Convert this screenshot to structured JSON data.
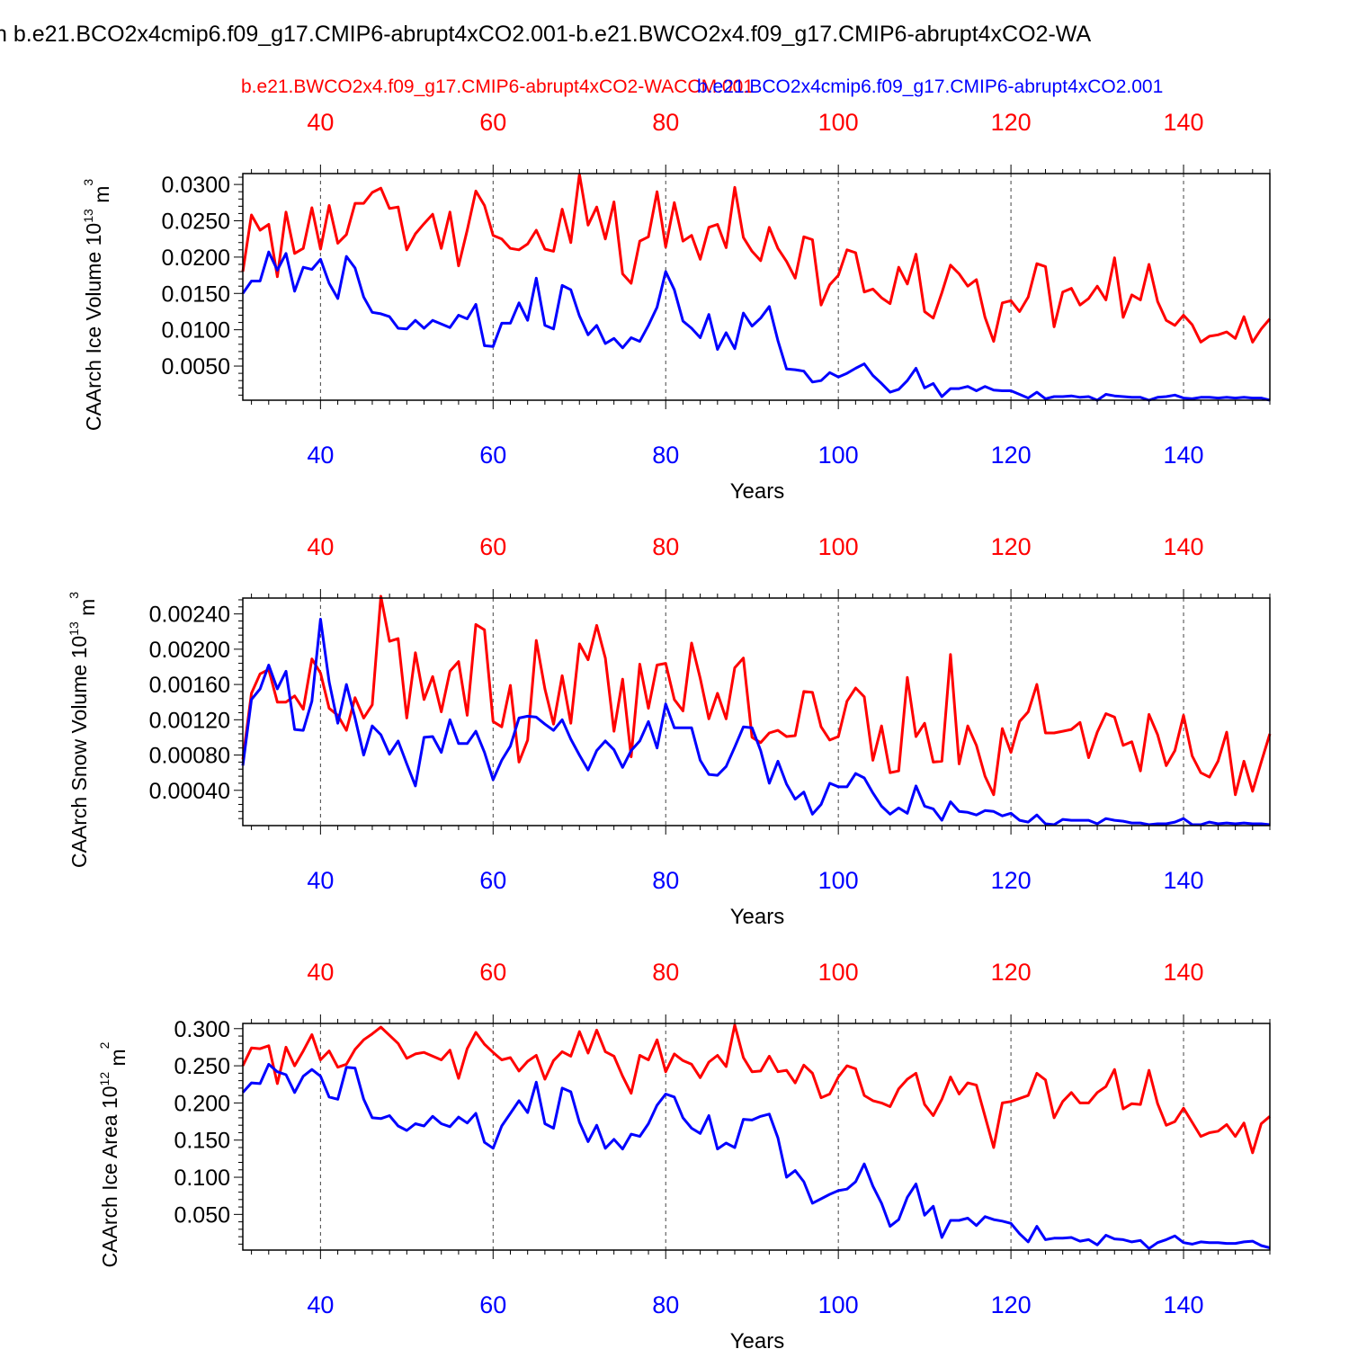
{
  "figure": {
    "main_title": "n b.e21.BCO2x4cmip6.f09_g17.CMIP6-abrupt4xCO2.001-b.e21.BWCO2x4.f09_g17.CMIP6-abrupt4xCO2-WA",
    "top_series_label": "b.e21.BWCO2x4.f09_g17.CMIP6-abrupt4xCO2-WACCM.001",
    "overlay_series_label": "b.e21.BCO2x4cmip6.f09_g17.CMIP6-abrupt4xCO2.001",
    "colors": {
      "red_series": "#ff0000",
      "blue_series": "#0000ff",
      "axis": "#000000"
    }
  },
  "chart_data": [
    {
      "type": "line",
      "ylabel": "CAArch Ice Volume",
      "yunit_base": "10",
      "yunit_exp": "13",
      "yunit_suffix": "m",
      "yunit_suffix_exp": "3",
      "xlabel": "Years",
      "xlim": [
        31,
        150
      ],
      "ylim": [
        0.0003,
        0.0315
      ],
      "yticks": [
        0.005,
        0.01,
        0.015,
        0.02,
        0.025,
        0.03
      ],
      "ytick_labels": [
        "0.0050",
        "0.0100",
        "0.0150",
        "0.0200",
        "0.0250",
        "0.0300"
      ],
      "xticks": [
        40,
        60,
        80,
        100,
        120,
        140
      ],
      "xtick_labels": [
        "40",
        "60",
        "80",
        "100",
        "120",
        "140"
      ],
      "x_start": 31,
      "series": [
        {
          "name": "b.e21.BWCO2x4.f09_g17.CMIP6-abrupt4xCO2-WACCM.001",
          "color": "#ff0000",
          "values": [
            0.018,
            0.0258,
            0.0237,
            0.0245,
            0.0173,
            0.0262,
            0.0205,
            0.0212,
            0.0268,
            0.0211,
            0.0271,
            0.0219,
            0.0231,
            0.0274,
            0.0274,
            0.0289,
            0.0295,
            0.0267,
            0.0269,
            0.021,
            0.0232,
            0.0246,
            0.0259,
            0.0212,
            0.0262,
            0.0188,
            0.0237,
            0.0291,
            0.0271,
            0.023,
            0.0225,
            0.0212,
            0.021,
            0.0218,
            0.0237,
            0.0211,
            0.0208,
            0.0266,
            0.022,
            0.0314,
            0.0244,
            0.0269,
            0.0225,
            0.0276,
            0.0177,
            0.0164,
            0.0222,
            0.0228,
            0.029,
            0.0214,
            0.0275,
            0.0222,
            0.023,
            0.0197,
            0.0241,
            0.0245,
            0.0213,
            0.0296,
            0.0227,
            0.0208,
            0.0195,
            0.0241,
            0.0212,
            0.0194,
            0.0171,
            0.0228,
            0.0224,
            0.0134,
            0.0162,
            0.0175,
            0.021,
            0.0206,
            0.0152,
            0.0156,
            0.0144,
            0.0136,
            0.0186,
            0.0163,
            0.0204,
            0.0125,
            0.0116,
            0.0151,
            0.0189,
            0.0177,
            0.016,
            0.0169,
            0.0117,
            0.0084,
            0.0137,
            0.014,
            0.0125,
            0.0145,
            0.0191,
            0.0187,
            0.0104,
            0.0152,
            0.0157,
            0.0134,
            0.0143,
            0.016,
            0.0141,
            0.0199,
            0.0117,
            0.0148,
            0.0141,
            0.019,
            0.0139,
            0.0113,
            0.0106,
            0.012,
            0.0107,
            0.0083,
            0.0091,
            0.0093,
            0.0097,
            0.0088,
            0.0118,
            0.0083,
            0.0101,
            0.0115
          ]
        },
        {
          "name": "b.e21.BCO2x4cmip6.f09_g17.CMIP6-abrupt4xCO2.001",
          "color": "#0000ff",
          "values": [
            0.015,
            0.0167,
            0.0167,
            0.0207,
            0.0182,
            0.0205,
            0.0153,
            0.0186,
            0.0183,
            0.0197,
            0.0164,
            0.0143,
            0.0201,
            0.0185,
            0.0145,
            0.0124,
            0.0122,
            0.0118,
            0.0102,
            0.0101,
            0.0113,
            0.0102,
            0.0113,
            0.0108,
            0.0103,
            0.012,
            0.0115,
            0.0135,
            0.0078,
            0.0077,
            0.0109,
            0.0109,
            0.0137,
            0.0113,
            0.0171,
            0.0106,
            0.0101,
            0.0161,
            0.0155,
            0.0119,
            0.0093,
            0.0106,
            0.0081,
            0.0088,
            0.0075,
            0.0089,
            0.0084,
            0.0106,
            0.0131,
            0.018,
            0.0155,
            0.0112,
            0.0102,
            0.0089,
            0.0121,
            0.0073,
            0.0096,
            0.0074,
            0.0123,
            0.0105,
            0.0116,
            0.0132,
            0.0085,
            0.0046,
            0.0045,
            0.0043,
            0.0028,
            0.003,
            0.0041,
            0.0035,
            0.004,
            0.0047,
            0.0053,
            0.0037,
            0.0026,
            0.0014,
            0.0018,
            0.003,
            0.0047,
            0.002,
            0.0026,
            0.0008,
            0.0019,
            0.0019,
            0.0022,
            0.0016,
            0.0022,
            0.0017,
            0.0016,
            0.0016,
            0.0011,
            0.0006,
            0.0014,
            0.0005,
            0.0008,
            0.0008,
            0.0009,
            0.0007,
            0.0008,
            0.0003,
            0.0011,
            0.0009,
            0.0008,
            0.0007,
            0.0007,
            0.0003,
            0.0007,
            0.0008,
            0.001,
            0.0006,
            0.0005,
            0.0007,
            0.0007,
            0.0006,
            0.0007,
            0.0006,
            0.0007,
            0.0006,
            0.0006,
            0.0003
          ]
        }
      ]
    },
    {
      "type": "line",
      "ylabel": "CAArch Snow Volume",
      "yunit_base": "10",
      "yunit_exp": "13",
      "yunit_suffix": "m",
      "yunit_suffix_exp": "3",
      "xlabel": "Years",
      "xlim": [
        31,
        150
      ],
      "ylim": [
        0.0,
        0.00258
      ],
      "yticks": [
        0.0004,
        0.0008,
        0.0012,
        0.0016,
        0.002,
        0.0024
      ],
      "ytick_labels": [
        "0.00040",
        "0.00080",
        "0.00120",
        "0.00160",
        "0.00200",
        "0.00240"
      ],
      "xticks": [
        40,
        60,
        80,
        100,
        120,
        140
      ],
      "xtick_labels": [
        "40",
        "60",
        "80",
        "100",
        "120",
        "140"
      ],
      "x_start": 31,
      "series": [
        {
          "name": "b.e21.BWCO2x4.f09_g17.CMIP6-abrupt4xCO2-WACCM.001",
          "color": "#ff0000",
          "values": [
            0.00075,
            0.0015,
            0.00172,
            0.00177,
            0.0014,
            0.0014,
            0.00147,
            0.00132,
            0.00189,
            0.00173,
            0.00133,
            0.00125,
            0.00108,
            0.00145,
            0.00122,
            0.00137,
            0.0026,
            0.00209,
            0.00212,
            0.00122,
            0.00196,
            0.00143,
            0.00169,
            0.00129,
            0.00175,
            0.00186,
            0.00125,
            0.00228,
            0.00222,
            0.00118,
            0.00112,
            0.00159,
            0.00072,
            0.00097,
            0.0021,
            0.00155,
            0.00115,
            0.0017,
            0.00116,
            0.00206,
            0.00188,
            0.00227,
            0.0019,
            0.00107,
            0.00166,
            0.00078,
            0.00183,
            0.00133,
            0.00182,
            0.00184,
            0.00143,
            0.0013,
            0.00207,
            0.00167,
            0.00121,
            0.0015,
            0.00121,
            0.00179,
            0.0019,
            0.001,
            0.00094,
            0.00105,
            0.00108,
            0.00101,
            0.00102,
            0.00152,
            0.00151,
            0.00112,
            0.00097,
            0.00101,
            0.00141,
            0.00156,
            0.00146,
            0.00074,
            0.00113,
            0.0006,
            0.00062,
            0.00168,
            0.00101,
            0.00116,
            0.00072,
            0.00073,
            0.00194,
            0.0007,
            0.00113,
            0.00091,
            0.00056,
            0.00035,
            0.0011,
            0.00083,
            0.00118,
            0.00129,
            0.0016,
            0.00105,
            0.00105,
            0.00107,
            0.00109,
            0.00117,
            0.00077,
            0.00106,
            0.00127,
            0.00123,
            0.00091,
            0.00095,
            0.00062,
            0.00126,
            0.00103,
            0.00068,
            0.00085,
            0.00125,
            0.00079,
            0.0006,
            0.00055,
            0.00073,
            0.00106,
            0.00035,
            0.00073,
            0.00039,
            0.00072,
            0.00104
          ]
        },
        {
          "name": "b.e21.BCO2x4cmip6.f09_g17.CMIP6-abrupt4xCO2.001",
          "color": "#0000ff",
          "values": [
            0.00068,
            0.00143,
            0.00155,
            0.00182,
            0.00155,
            0.00175,
            0.00109,
            0.00108,
            0.00141,
            0.00234,
            0.00163,
            0.00116,
            0.0016,
            0.00122,
            0.0008,
            0.00113,
            0.00103,
            0.00081,
            0.00096,
            0.0007,
            0.00045,
            0.001,
            0.00101,
            0.00083,
            0.0012,
            0.00093,
            0.00093,
            0.00107,
            0.00083,
            0.00052,
            0.00074,
            0.0009,
            0.00122,
            0.00124,
            0.00123,
            0.00115,
            0.00108,
            0.0012,
            0.00098,
            0.0008,
            0.00063,
            0.00085,
            0.00096,
            0.00086,
            0.00066,
            0.00085,
            0.00096,
            0.00118,
            0.00088,
            0.00138,
            0.00111,
            0.00111,
            0.00111,
            0.00074,
            0.00058,
            0.00057,
            0.00067,
            0.00089,
            0.00112,
            0.00111,
            0.00085,
            0.00048,
            0.00073,
            0.00047,
            0.0003,
            0.00038,
            0.00013,
            0.00024,
            0.00048,
            0.00044,
            0.00044,
            0.00059,
            0.00054,
            0.00037,
            0.00022,
            0.00013,
            0.0002,
            0.00014,
            0.00045,
            0.00022,
            0.00019,
            6e-05,
            0.00027,
            0.00016,
            0.00015,
            0.00012,
            0.00017,
            0.00016,
            0.00011,
            0.00014,
            6e-05,
            4e-05,
            0.00012,
            2e-05,
            1e-05,
            7e-05,
            6e-05,
            6e-05,
            6e-05,
            2e-05,
            8e-05,
            6e-05,
            5e-05,
            3e-05,
            3e-05,
            1e-05,
            2e-05,
            2e-05,
            4e-05,
            8e-05,
            1e-05,
            1e-05,
            4e-05,
            2e-05,
            3e-05,
            2e-05,
            3e-05,
            2e-05,
            2e-05,
            1e-05
          ]
        }
      ]
    },
    {
      "type": "line",
      "ylabel": "CAArch Ice Area",
      "yunit_base": "10",
      "yunit_exp": "12",
      "yunit_suffix": "m",
      "yunit_suffix_exp": "2",
      "xlabel": "Years",
      "xlim": [
        31,
        150
      ],
      "ylim": [
        0.002,
        0.307
      ],
      "yticks": [
        0.05,
        0.1,
        0.15,
        0.2,
        0.25,
        0.3
      ],
      "ytick_labels": [
        "0.050",
        "0.100",
        "0.150",
        "0.200",
        "0.250",
        "0.300"
      ],
      "xticks": [
        40,
        60,
        80,
        100,
        120,
        140
      ],
      "xtick_labels": [
        "40",
        "60",
        "80",
        "100",
        "120",
        "140"
      ],
      "x_start": 31,
      "series": [
        {
          "name": "b.e21.BWCO2x4.f09_g17.CMIP6-abrupt4xCO2-WACCM.001",
          "color": "#ff0000",
          "values": [
            0.25,
            0.274,
            0.273,
            0.277,
            0.226,
            0.275,
            0.25,
            0.27,
            0.292,
            0.258,
            0.27,
            0.248,
            0.252,
            0.272,
            0.285,
            0.293,
            0.302,
            0.291,
            0.28,
            0.26,
            0.266,
            0.268,
            0.263,
            0.258,
            0.271,
            0.233,
            0.273,
            0.295,
            0.279,
            0.268,
            0.258,
            0.261,
            0.243,
            0.256,
            0.264,
            0.232,
            0.257,
            0.269,
            0.263,
            0.296,
            0.267,
            0.298,
            0.269,
            0.263,
            0.236,
            0.213,
            0.264,
            0.258,
            0.285,
            0.242,
            0.266,
            0.257,
            0.252,
            0.234,
            0.255,
            0.264,
            0.249,
            0.305,
            0.261,
            0.242,
            0.243,
            0.263,
            0.242,
            0.244,
            0.227,
            0.251,
            0.24,
            0.207,
            0.212,
            0.235,
            0.25,
            0.246,
            0.21,
            0.203,
            0.2,
            0.195,
            0.219,
            0.232,
            0.24,
            0.198,
            0.183,
            0.205,
            0.235,
            0.212,
            0.227,
            0.224,
            0.182,
            0.14,
            0.2,
            0.202,
            0.206,
            0.21,
            0.24,
            0.231,
            0.18,
            0.202,
            0.214,
            0.2,
            0.2,
            0.214,
            0.222,
            0.245,
            0.192,
            0.199,
            0.198,
            0.244,
            0.199,
            0.17,
            0.175,
            0.193,
            0.174,
            0.155,
            0.16,
            0.162,
            0.171,
            0.155,
            0.173,
            0.133,
            0.172,
            0.182
          ]
        },
        {
          "name": "b.e21.BCO2x4cmip6.f09_g17.CMIP6-abrupt4xCO2.001",
          "color": "#0000ff",
          "values": [
            0.214,
            0.227,
            0.226,
            0.252,
            0.242,
            0.238,
            0.214,
            0.236,
            0.245,
            0.236,
            0.208,
            0.205,
            0.248,
            0.247,
            0.205,
            0.18,
            0.179,
            0.183,
            0.169,
            0.163,
            0.172,
            0.169,
            0.182,
            0.172,
            0.168,
            0.181,
            0.173,
            0.186,
            0.147,
            0.139,
            0.169,
            0.186,
            0.203,
            0.187,
            0.228,
            0.172,
            0.166,
            0.22,
            0.215,
            0.174,
            0.148,
            0.17,
            0.139,
            0.151,
            0.138,
            0.158,
            0.155,
            0.172,
            0.197,
            0.212,
            0.208,
            0.18,
            0.166,
            0.159,
            0.183,
            0.138,
            0.146,
            0.14,
            0.178,
            0.177,
            0.182,
            0.185,
            0.153,
            0.1,
            0.109,
            0.094,
            0.065,
            0.071,
            0.077,
            0.082,
            0.084,
            0.094,
            0.118,
            0.088,
            0.065,
            0.034,
            0.043,
            0.073,
            0.091,
            0.049,
            0.061,
            0.019,
            0.042,
            0.042,
            0.045,
            0.035,
            0.047,
            0.043,
            0.041,
            0.038,
            0.024,
            0.013,
            0.034,
            0.016,
            0.018,
            0.018,
            0.019,
            0.014,
            0.016,
            0.009,
            0.022,
            0.017,
            0.016,
            0.013,
            0.015,
            0.004,
            0.012,
            0.016,
            0.021,
            0.012,
            0.01,
            0.013,
            0.012,
            0.012,
            0.011,
            0.011,
            0.013,
            0.014,
            0.008,
            0.005
          ]
        }
      ]
    }
  ]
}
